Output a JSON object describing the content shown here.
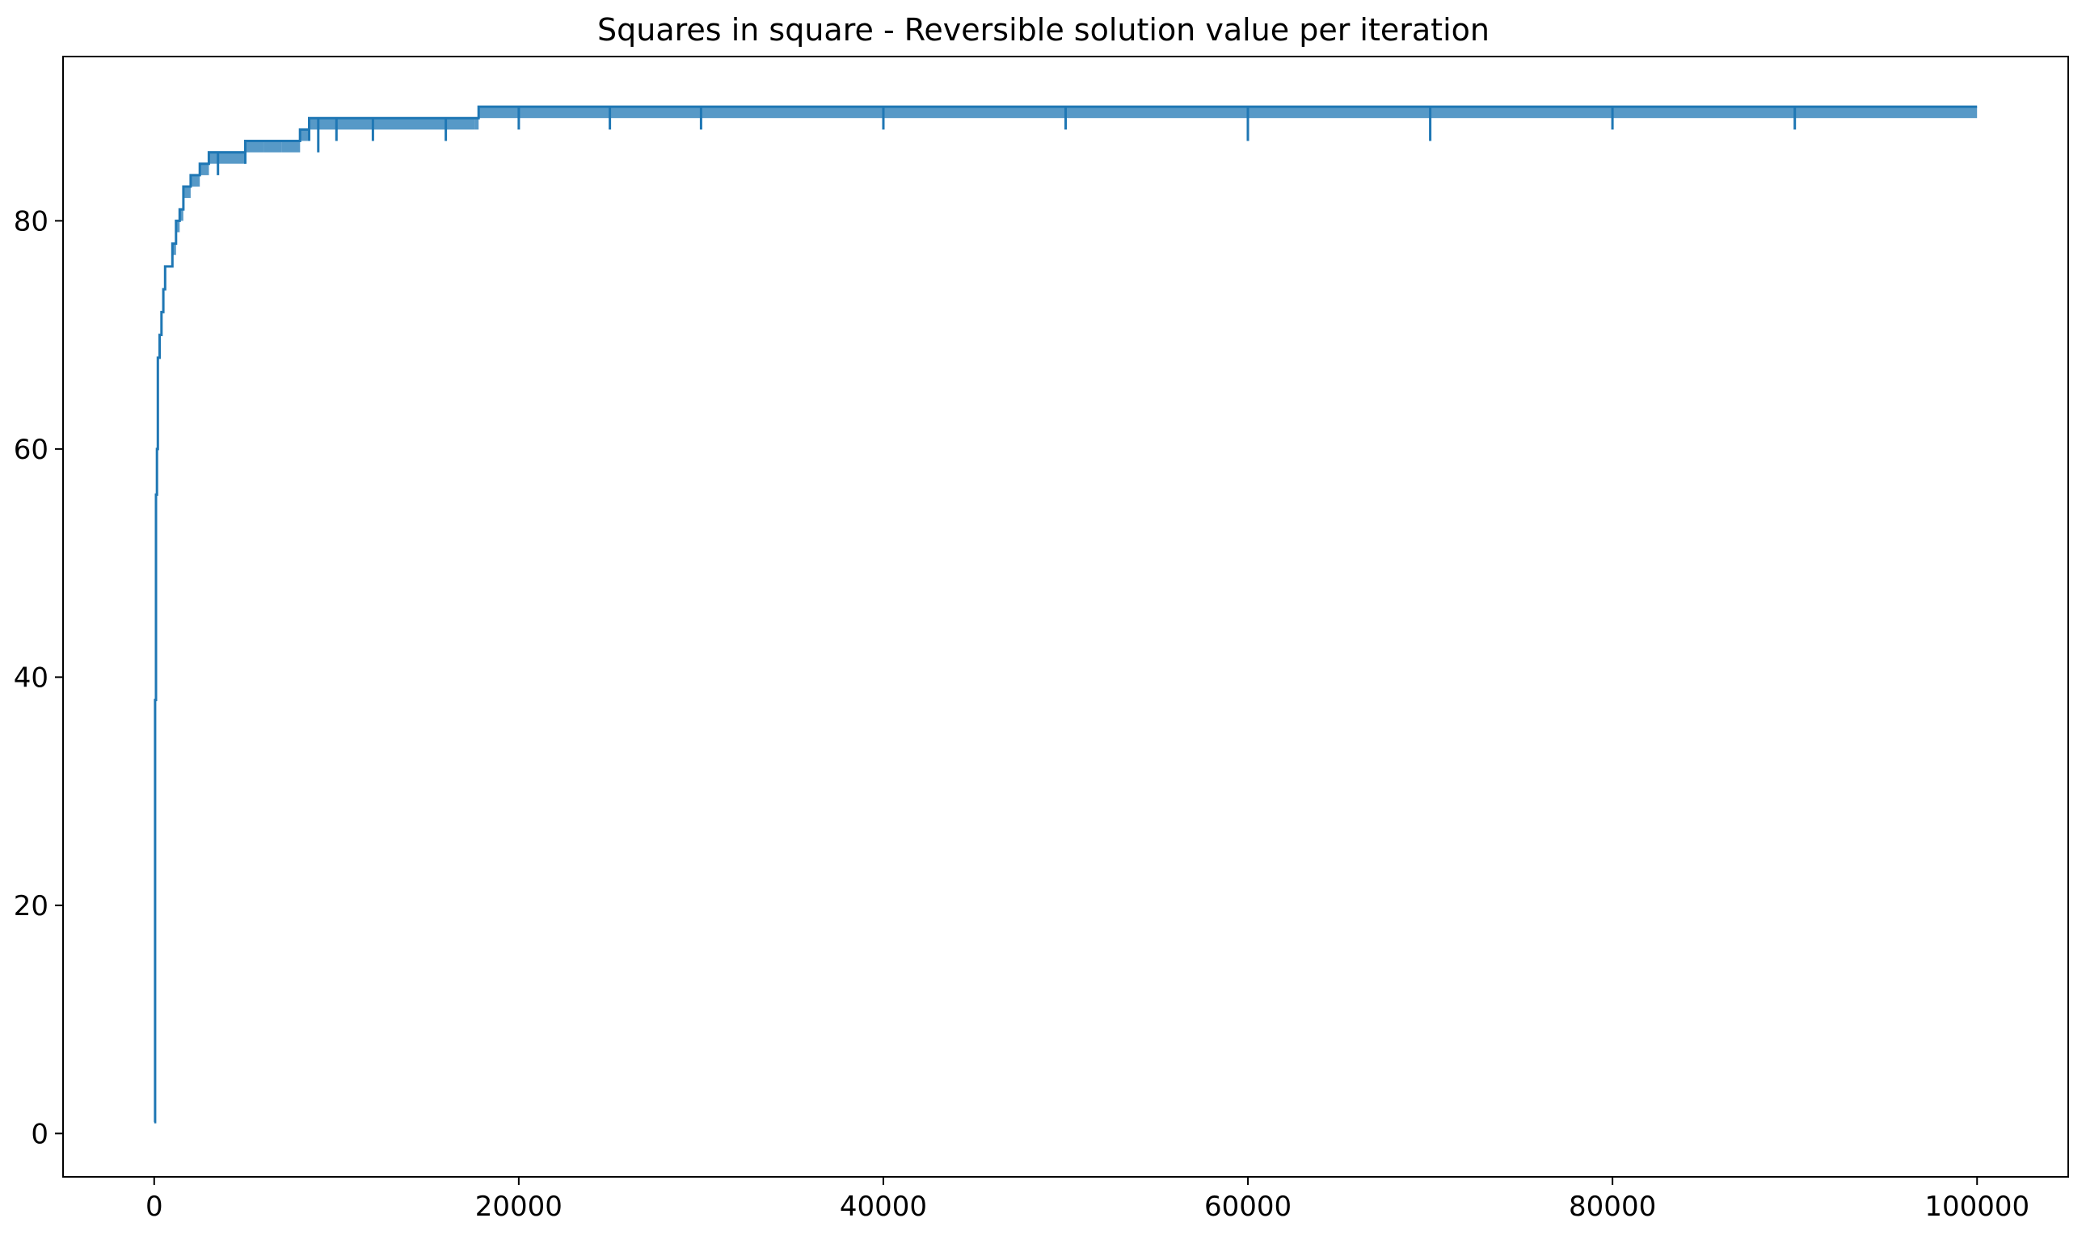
{
  "chart_data": {
    "type": "line",
    "title": "Squares in square - Reversible solution value per iteration",
    "xlabel": "",
    "ylabel": "",
    "xlim": [
      -5000,
      105000
    ],
    "ylim": [
      -3.8,
      94.4
    ],
    "xticks": [
      0,
      20000,
      40000,
      60000,
      80000,
      100000
    ],
    "xtick_labels": [
      "0",
      "20000",
      "40000",
      "60000",
      "80000",
      "100000"
    ],
    "yticks": [
      0,
      20,
      40,
      60,
      80
    ],
    "ytick_labels": [
      "0",
      "20",
      "40",
      "60",
      "80"
    ],
    "grid": false,
    "legend": "none",
    "series": [
      {
        "color": "#1f77b4",
        "x": [
          0,
          50,
          100,
          150,
          200,
          300,
          400,
          500,
          600,
          800,
          1000,
          1200,
          1400,
          1600,
          2000,
          2500,
          3000,
          3500,
          4000,
          5000,
          6000,
          7000,
          8000,
          8500,
          9000,
          10000,
          12000,
          14000,
          16000,
          17600,
          17800,
          20000,
          25000,
          30000,
          40000,
          50000,
          60000,
          70000,
          80000,
          90000,
          100000
        ],
        "values": [
          1,
          38,
          56,
          60,
          68,
          70,
          72,
          74,
          76,
          76,
          78,
          80,
          81,
          83,
          84,
          85,
          86,
          86,
          86,
          87,
          87,
          87,
          88,
          89,
          89,
          89,
          89,
          89,
          89,
          89,
          90,
          90,
          90,
          90,
          90,
          90,
          90,
          90,
          90,
          90,
          90
        ],
        "lower": [
          1,
          38,
          56,
          60,
          68,
          70,
          72,
          74,
          76,
          76,
          77,
          79,
          80,
          82,
          83,
          84,
          85,
          84,
          85,
          85,
          86,
          86,
          87,
          87,
          86,
          87,
          87,
          88,
          87,
          88,
          89,
          88,
          88,
          88,
          88,
          88,
          87,
          87,
          88,
          88,
          89
        ]
      }
    ]
  }
}
